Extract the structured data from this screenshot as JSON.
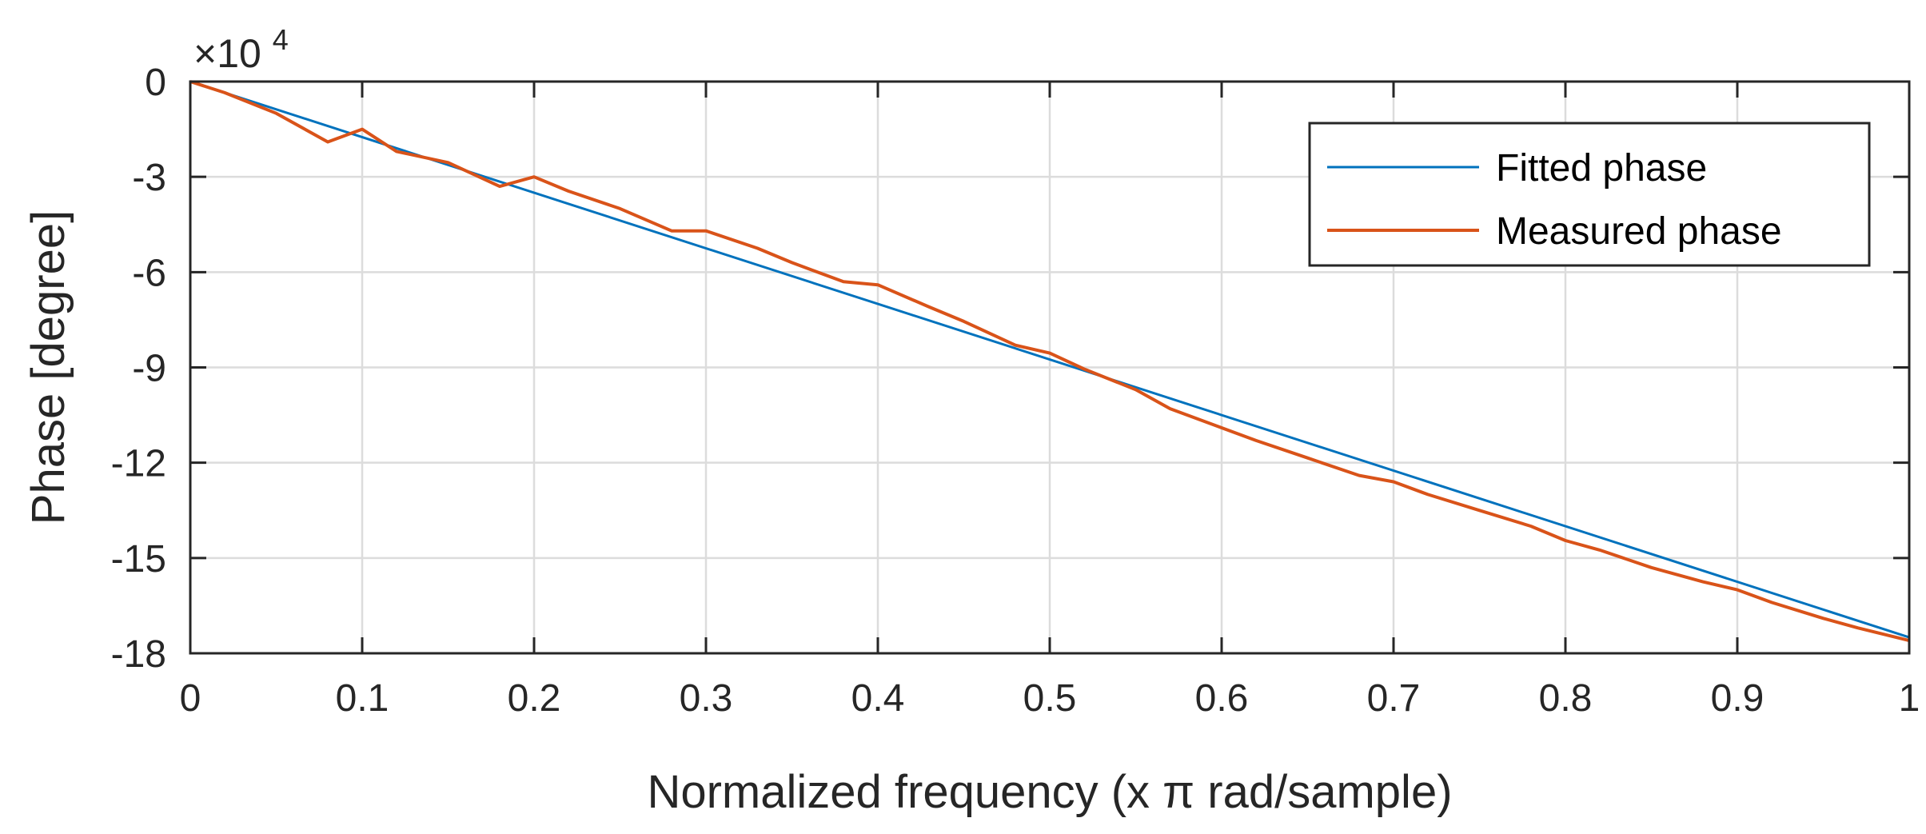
{
  "chart_data": {
    "type": "line",
    "title": "",
    "xlabel": "Normalized frequency (x π rad/sample)",
    "ylabel": "Phase [degree]",
    "y_exponent_label": "×10",
    "y_exponent_power": "4",
    "xlim": [
      0,
      1
    ],
    "ylim": [
      -18,
      0
    ],
    "y_scale_multiplier": 10000,
    "grid": true,
    "legend_position": "top-right",
    "x_ticks": [
      0,
      0.1,
      0.2,
      0.3,
      0.4,
      0.5,
      0.6,
      0.7,
      0.8,
      0.9,
      1
    ],
    "x_tick_labels": [
      "0",
      "0.1",
      "0.2",
      "0.3",
      "0.4",
      "0.5",
      "0.6",
      "0.7",
      "0.8",
      "0.9",
      "1"
    ],
    "y_ticks": [
      0,
      -3,
      -6,
      -9,
      -12,
      -15,
      -18
    ],
    "y_tick_labels": [
      "0",
      "-3",
      "-6",
      "-9",
      "-12",
      "-15",
      "-18"
    ],
    "series": [
      {
        "name": "Fitted phase",
        "color": "#0072BD",
        "x": [
          0,
          1
        ],
        "y": [
          0,
          -17.5
        ]
      },
      {
        "name": "Measured phase",
        "color": "#D95319",
        "x": [
          0,
          0.02,
          0.05,
          0.08,
          0.1,
          0.12,
          0.15,
          0.18,
          0.2,
          0.22,
          0.25,
          0.28,
          0.3,
          0.33,
          0.35,
          0.38,
          0.4,
          0.43,
          0.45,
          0.48,
          0.5,
          0.52,
          0.55,
          0.57,
          0.6,
          0.62,
          0.65,
          0.68,
          0.7,
          0.72,
          0.75,
          0.78,
          0.8,
          0.82,
          0.85,
          0.88,
          0.9,
          0.92,
          0.95,
          0.97,
          1.0
        ],
        "y": [
          0,
          -0.35,
          -1.0,
          -1.9,
          -1.5,
          -2.2,
          -2.55,
          -3.3,
          -3.0,
          -3.45,
          -4.0,
          -4.7,
          -4.7,
          -5.25,
          -5.7,
          -6.3,
          -6.4,
          -7.1,
          -7.55,
          -8.3,
          -8.55,
          -9.05,
          -9.7,
          -10.3,
          -10.9,
          -11.3,
          -11.85,
          -12.4,
          -12.6,
          -13.0,
          -13.5,
          -14.0,
          -14.45,
          -14.75,
          -15.3,
          -15.75,
          -16.0,
          -16.4,
          -16.9,
          -17.2,
          -17.6
        ]
      }
    ]
  }
}
